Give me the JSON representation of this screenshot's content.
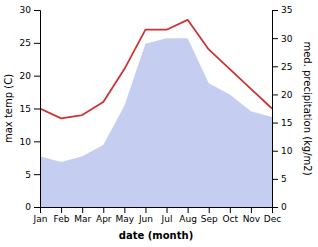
{
  "chart_data": {
    "type": "line",
    "categories": [
      "Jan",
      "Feb",
      "Mar",
      "Apr",
      "May",
      "Jun",
      "Jul",
      "Aug",
      "Sep",
      "Oct",
      "Nov",
      "Dec"
    ],
    "xlabel": "date (month)",
    "ylabel": "max temp (C)",
    "y2label": "med. precipitation (kg/m2)",
    "series": [
      {
        "type": "area",
        "axis": "y2",
        "color": "#c5cef0",
        "values": [
          9,
          8,
          9,
          11,
          18,
          29,
          30,
          30,
          22,
          20,
          17,
          16
        ]
      },
      {
        "type": "line",
        "color": "#cc3333",
        "values": [
          15,
          13.5,
          14,
          16,
          21,
          27,
          27,
          28.5,
          24,
          21,
          18,
          15
        ]
      }
    ],
    "ylim": [
      0,
      30
    ],
    "yticks": [
      0,
      5,
      10,
      15,
      20,
      25,
      30
    ],
    "y2lim": [
      0,
      35
    ],
    "y2ticks": [
      0,
      5,
      10,
      15,
      20,
      25,
      30,
      35
    ],
    "grid": false
  }
}
